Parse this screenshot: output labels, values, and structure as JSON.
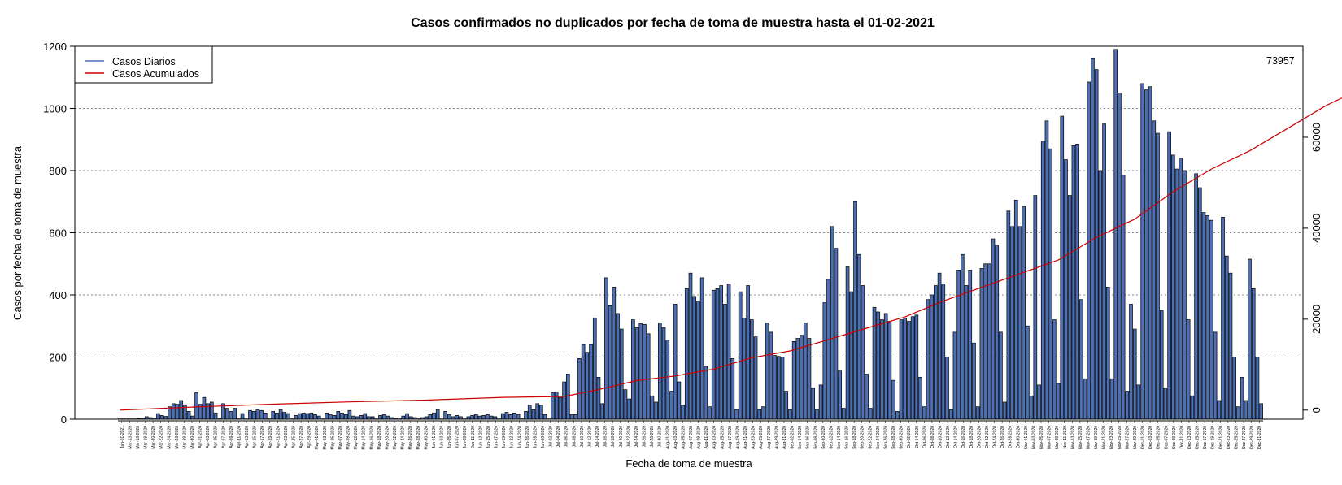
{
  "chart_data": {
    "type": "bar",
    "title": "Casos confirmados no duplicados por fecha de toma de muestra hasta el 01-02-2021",
    "xlabel": "Fecha de toma de muestra",
    "ylabel": "Casos por fecha de toma de muestra",
    "ylim": [
      0,
      1200
    ],
    "y_ticks": [
      0,
      200,
      400,
      600,
      800,
      1000,
      1200
    ],
    "y2lim": [
      -2000,
      80000
    ],
    "y2_ticks": [
      0,
      20000,
      40000,
      60000
    ],
    "grid": "horizontal dotted",
    "legend_position": "top-left",
    "end_label": "73957",
    "x_tick_labels": [
      "Jan-01-2021",
      "Mar-13-2020",
      "Mar-16-2020",
      "Mar-18-2020",
      "Mar-20-2020",
      "Mar-22-2020",
      "Mar-24-2020",
      "Mar-26-2020",
      "Mar-28-2020",
      "Mar-30-2020",
      "Apr-01-2020",
      "Apr-03-2020",
      "Apr-05-2020",
      "Apr-07-2020",
      "Apr-09-2020",
      "Apr-11-2020",
      "Apr-13-2020",
      "Apr-15-2020",
      "Apr-17-2020",
      "Apr-19-2020",
      "Apr-21-2020",
      "Apr-23-2020",
      "Apr-25-2020",
      "Apr-27-2020",
      "Apr-29-2020",
      "May-01-2020",
      "May-03-2020",
      "May-05-2020",
      "May-07-2020",
      "May-09-2020",
      "May-12-2020",
      "May-14-2020",
      "May-16-2020",
      "May-18-2020",
      "May-20-2020",
      "May-22-2020",
      "May-24-2020",
      "May-26-2020",
      "May-28-2020",
      "May-30-2020",
      "Jun-01-2020",
      "Jun-03-2020",
      "Jun-05-2020",
      "Jun-07-2020",
      "Jun-09-2020",
      "Jun-11-2020",
      "Jun-13-2020",
      "Jun-15-2020",
      "Jun-17-2020",
      "Jun-19-2020",
      "Jun-22-2020",
      "Jun-24-2020",
      "Jun-26-2020",
      "Jun-28-2020",
      "Jun-30-2020",
      "Jul-02-2020",
      "Jul-04-2020",
      "Jul-06-2020",
      "Jul-08-2020",
      "Jul-10-2020",
      "Jul-12-2020",
      "Jul-14-2020",
      "Jul-16-2020",
      "Jul-18-2020",
      "Jul-20-2020",
      "Jul-22-2020",
      "Jul-24-2020",
      "Jul-26-2020",
      "Jul-28-2020",
      "Jul-30-2020",
      "Aug-01-2020",
      "Aug-03-2020",
      "Aug-05-2020",
      "Aug-07-2020",
      "Aug-09-2020",
      "Aug-11-2020",
      "Aug-13-2020",
      "Aug-15-2020",
      "Aug-17-2020",
      "Aug-19-2020",
      "Aug-21-2020",
      "Aug-23-2020",
      "Aug-25-2020",
      "Aug-27-2020",
      "Aug-29-2020",
      "Aug-31-2020",
      "Sep-02-2020",
      "Sep-04-2020",
      "Sep-06-2020",
      "Sep-08-2020",
      "Sep-10-2020",
      "Sep-12-2020",
      "Sep-14-2020",
      "Sep-16-2020",
      "Sep-18-2020",
      "Sep-20-2020",
      "Sep-22-2020",
      "Sep-24-2020",
      "Sep-26-2020",
      "Sep-28-2020",
      "Sep-30-2020",
      "Oct-02-2020",
      "Oct-04-2020",
      "Oct-06-2020",
      "Oct-08-2020",
      "Oct-10-2020",
      "Oct-12-2020",
      "Oct-14-2020",
      "Oct-16-2020",
      "Oct-18-2020",
      "Oct-20-2020",
      "Oct-22-2020",
      "Oct-24-2020",
      "Oct-26-2020",
      "Oct-28-2020",
      "Oct-30-2020",
      "Nov-01-2020",
      "Nov-03-2020",
      "Nov-05-2020",
      "Nov-07-2020",
      "Nov-09-2020",
      "Nov-11-2020",
      "Nov-13-2020",
      "Nov-15-2020",
      "Nov-17-2020",
      "Nov-19-2020",
      "Nov-21-2020",
      "Nov-23-2020",
      "Nov-25-2020",
      "Nov-27-2020",
      "Nov-29-2020",
      "Dec-01-2020",
      "Dec-03-2020",
      "Dec-05-2020",
      "Dec-07-2020",
      "Dec-09-2020",
      "Dec-11-2020",
      "Dec-13-2020",
      "Dec-15-2020",
      "Dec-17-2020",
      "Dec-19-2020",
      "Dec-21-2020",
      "Dec-23-2020",
      "Dec-25-2020",
      "Dec-27-2020",
      "Dec-29-2020",
      "Dec-31-2020"
    ],
    "series": [
      {
        "name": "Casos Diarios",
        "type": "bar",
        "color": "#4b70b8",
        "values": [
          1,
          0,
          0,
          0,
          0,
          2,
          3,
          8,
          5,
          4,
          18,
          12,
          9,
          40,
          50,
          48,
          60,
          45,
          25,
          10,
          85,
          48,
          70,
          50,
          55,
          20,
          0,
          50,
          35,
          25,
          35,
          0,
          18,
          0,
          28,
          25,
          30,
          28,
          20,
          0,
          25,
          20,
          30,
          22,
          18,
          0,
          12,
          18,
          20,
          18,
          20,
          15,
          10,
          0,
          20,
          15,
          12,
          25,
          20,
          15,
          28,
          10,
          8,
          12,
          18,
          8,
          8,
          0,
          12,
          15,
          10,
          5,
          3,
          0,
          10,
          18,
          8,
          5,
          0,
          5,
          8,
          15,
          20,
          30,
          0,
          25,
          15,
          8,
          12,
          8,
          0,
          8,
          12,
          15,
          10,
          12,
          15,
          10,
          8,
          0,
          18,
          22,
          15,
          20,
          15,
          0,
          25,
          45,
          30,
          50,
          45,
          15,
          0,
          85,
          88,
          70,
          120,
          145,
          15,
          15,
          195,
          240,
          215,
          240,
          325,
          135,
          50,
          455,
          365,
          425,
          340,
          290,
          95,
          65,
          320,
          295,
          308,
          305,
          275,
          75,
          55,
          310,
          295,
          255,
          90,
          370,
          120,
          45,
          420,
          470,
          395,
          380,
          455,
          170,
          40,
          415,
          420,
          430,
          370,
          435,
          195,
          30,
          410,
          325,
          430,
          320,
          265,
          30,
          40,
          310,
          280,
          205,
          202,
          200,
          90,
          30,
          250,
          260,
          270,
          310,
          260,
          100,
          30,
          110,
          375,
          450,
          620,
          550,
          155,
          35,
          490,
          410,
          700,
          530,
          430,
          145,
          35,
          360,
          345,
          320,
          340,
          315,
          125,
          25,
          320,
          325,
          315,
          330,
          335,
          135,
          40,
          385,
          400,
          430,
          470,
          435,
          200,
          30,
          280,
          480,
          530,
          430,
          480,
          245,
          40,
          485,
          500,
          500,
          580,
          560,
          280,
          55,
          670,
          620,
          705,
          620,
          685,
          300,
          75,
          720,
          110,
          895,
          960,
          870,
          320,
          115,
          975,
          835,
          720,
          880,
          885,
          385,
          130,
          1085,
          1160,
          1125,
          800,
          950,
          425,
          130,
          1190,
          1050,
          785,
          90,
          370,
          290,
          110,
          1080,
          1060,
          1070,
          960,
          920,
          350,
          100,
          925,
          850,
          805,
          840,
          800,
          320,
          75,
          790,
          745,
          665,
          655,
          640,
          280,
          60,
          650,
          525,
          470,
          200,
          40,
          135,
          60,
          515,
          420,
          200,
          50
        ]
      },
      {
        "name": "Casos Acumulados",
        "type": "line",
        "color": "#cc0000",
        "points": [
          [
            0,
            0
          ],
          [
            20,
            700
          ],
          [
            40,
            1300
          ],
          [
            60,
            1800
          ],
          [
            80,
            2200
          ],
          [
            100,
            2800
          ],
          [
            116,
            3000
          ],
          [
            125,
            4500
          ],
          [
            135,
            6500
          ],
          [
            145,
            7500
          ],
          [
            155,
            9000
          ],
          [
            165,
            11500
          ],
          [
            175,
            13000
          ],
          [
            185,
            15500
          ],
          [
            195,
            18000
          ],
          [
            205,
            20500
          ],
          [
            215,
            24000
          ],
          [
            225,
            27000
          ],
          [
            235,
            30000
          ],
          [
            245,
            33000
          ],
          [
            255,
            38000
          ],
          [
            265,
            42000
          ],
          [
            275,
            48000
          ],
          [
            285,
            53000
          ],
          [
            295,
            57000
          ],
          [
            305,
            62000
          ],
          [
            315,
            67000
          ],
          [
            325,
            71000
          ],
          [
            333,
            73000
          ],
          [
            338,
            73957
          ]
        ]
      }
    ],
    "legend": [
      "Casos Diarios",
      "Casos Acumulados"
    ]
  }
}
